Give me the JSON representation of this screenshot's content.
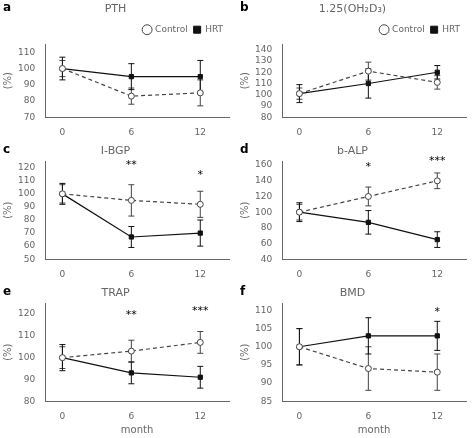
{
  "chart_data": [
    {
      "type": "line",
      "panel_label": "a",
      "title": "PTH",
      "ylabel": "(%)",
      "x": [
        0,
        6,
        12
      ],
      "xlim": [
        -1.5,
        14.5
      ],
      "xticks": [
        0,
        6,
        12
      ],
      "ylim": [
        70,
        115
      ],
      "yticks": [
        70,
        80,
        90,
        100,
        110
      ],
      "grid": false,
      "legend": "upper right",
      "series": [
        {
          "name": "Control",
          "color": "#444444",
          "marker": "circle",
          "line_style": "dashed",
          "values": [
            100,
            83,
            85
          ],
          "yerr": [
            5,
            5,
            8
          ]
        },
        {
          "name": "HRT",
          "color": "#111111",
          "marker": "square",
          "line_style": "solid",
          "values": [
            100,
            95,
            95
          ],
          "yerr": [
            7,
            8,
            10
          ]
        }
      ]
    },
    {
      "type": "line",
      "panel_label": "b",
      "title": "1.25(OH₂D₃)",
      "ylabel": "(%)",
      "x": [
        0,
        6,
        12
      ],
      "xlim": [
        -1.5,
        14.5
      ],
      "xticks": [
        0,
        6,
        12
      ],
      "ylim": [
        80,
        145
      ],
      "yticks": [
        80,
        90,
        100,
        110,
        120,
        130,
        140
      ],
      "grid": false,
      "legend": "upper right",
      "series": [
        {
          "name": "Control",
          "color": "#444444",
          "marker": "circle",
          "line_style": "dashed",
          "values": [
            101,
            121,
            111
          ],
          "yerr": [
            5,
            8,
            6
          ]
        },
        {
          "name": "HRT",
          "color": "#111111",
          "marker": "square",
          "line_style": "solid",
          "values": [
            101,
            110,
            120
          ],
          "yerr": [
            8,
            13,
            6
          ]
        }
      ]
    },
    {
      "type": "line",
      "panel_label": "c",
      "title": "I-BGP",
      "ylabel": "(%)",
      "x": [
        0,
        6,
        12
      ],
      "xlim": [
        -1.5,
        14.5
      ],
      "xticks": [
        0,
        6,
        12
      ],
      "ylim": [
        50,
        125
      ],
      "yticks": [
        50,
        60,
        70,
        80,
        90,
        100,
        110,
        120
      ],
      "grid": false,
      "series": [
        {
          "name": "Control",
          "color": "#444444",
          "marker": "circle",
          "line_style": "dashed",
          "values": [
            100,
            95,
            92
          ],
          "yerr": [
            7,
            12,
            10
          ]
        },
        {
          "name": "HRT",
          "color": "#111111",
          "marker": "square",
          "line_style": "solid",
          "values": [
            100,
            67,
            70
          ],
          "yerr": [
            8,
            8,
            10
          ]
        }
      ],
      "annotations": [
        {
          "x": 6,
          "y": 118,
          "text": "**"
        },
        {
          "x": 12,
          "y": 110,
          "text": "*"
        }
      ]
    },
    {
      "type": "line",
      "panel_label": "d",
      "title": "b-ALP",
      "ylabel": "(%)",
      "x": [
        0,
        6,
        12
      ],
      "xlim": [
        -1.5,
        14.5
      ],
      "xticks": [
        0,
        6,
        12
      ],
      "ylim": [
        40,
        165
      ],
      "yticks": [
        40,
        60,
        80,
        100,
        120,
        140,
        160
      ],
      "grid": false,
      "series": [
        {
          "name": "Control",
          "color": "#444444",
          "marker": "circle",
          "line_style": "dashed",
          "values": [
            100,
            120,
            140
          ],
          "yerr": [
            10,
            12,
            10
          ]
        },
        {
          "name": "HRT",
          "color": "#111111",
          "marker": "square",
          "line_style": "solid",
          "values": [
            100,
            87,
            65
          ],
          "yerr": [
            12,
            15,
            10
          ]
        }
      ],
      "annotations": [
        {
          "x": 6,
          "y": 150,
          "text": "*"
        },
        {
          "x": 12,
          "y": 158,
          "text": "***"
        }
      ]
    },
    {
      "type": "line",
      "panel_label": "e",
      "title": "TRAP",
      "ylabel": "(%)",
      "xlabel": "month",
      "x": [
        0,
        6,
        12
      ],
      "xlim": [
        -1.5,
        14.5
      ],
      "xticks": [
        0,
        6,
        12
      ],
      "ylim": [
        80,
        125
      ],
      "yticks": [
        80,
        90,
        100,
        110,
        120
      ],
      "grid": false,
      "series": [
        {
          "name": "Control",
          "color": "#444444",
          "marker": "circle",
          "line_style": "dashed",
          "values": [
            100,
            103,
            107
          ],
          "yerr": [
            5,
            5,
            5
          ]
        },
        {
          "name": "HRT",
          "color": "#111111",
          "marker": "square",
          "line_style": "solid",
          "values": [
            100,
            93,
            91
          ],
          "yerr": [
            6,
            5,
            5
          ]
        }
      ],
      "annotations": [
        {
          "x": 6,
          "y": 117,
          "text": "**"
        },
        {
          "x": 12,
          "y": 119,
          "text": "***"
        }
      ]
    },
    {
      "type": "line",
      "panel_label": "f",
      "title": "BMD",
      "ylabel": "(%)",
      "xlabel": "month",
      "x": [
        0,
        6,
        12
      ],
      "xlim": [
        -1.5,
        14.5
      ],
      "xticks": [
        0,
        6,
        12
      ],
      "ylim": [
        85,
        112
      ],
      "yticks": [
        85,
        90,
        95,
        100,
        105,
        110
      ],
      "grid": false,
      "series": [
        {
          "name": "Control",
          "color": "#444444",
          "marker": "circle",
          "line_style": "dashed",
          "values": [
            100,
            94,
            93
          ],
          "yerr": [
            5,
            6,
            5
          ]
        },
        {
          "name": "HRT",
          "color": "#111111",
          "marker": "square",
          "line_style": "solid",
          "values": [
            100,
            103,
            103
          ],
          "yerr": [
            5,
            5,
            4
          ]
        }
      ],
      "annotations": [
        {
          "x": 12,
          "y": 108,
          "text": "*"
        }
      ]
    }
  ]
}
